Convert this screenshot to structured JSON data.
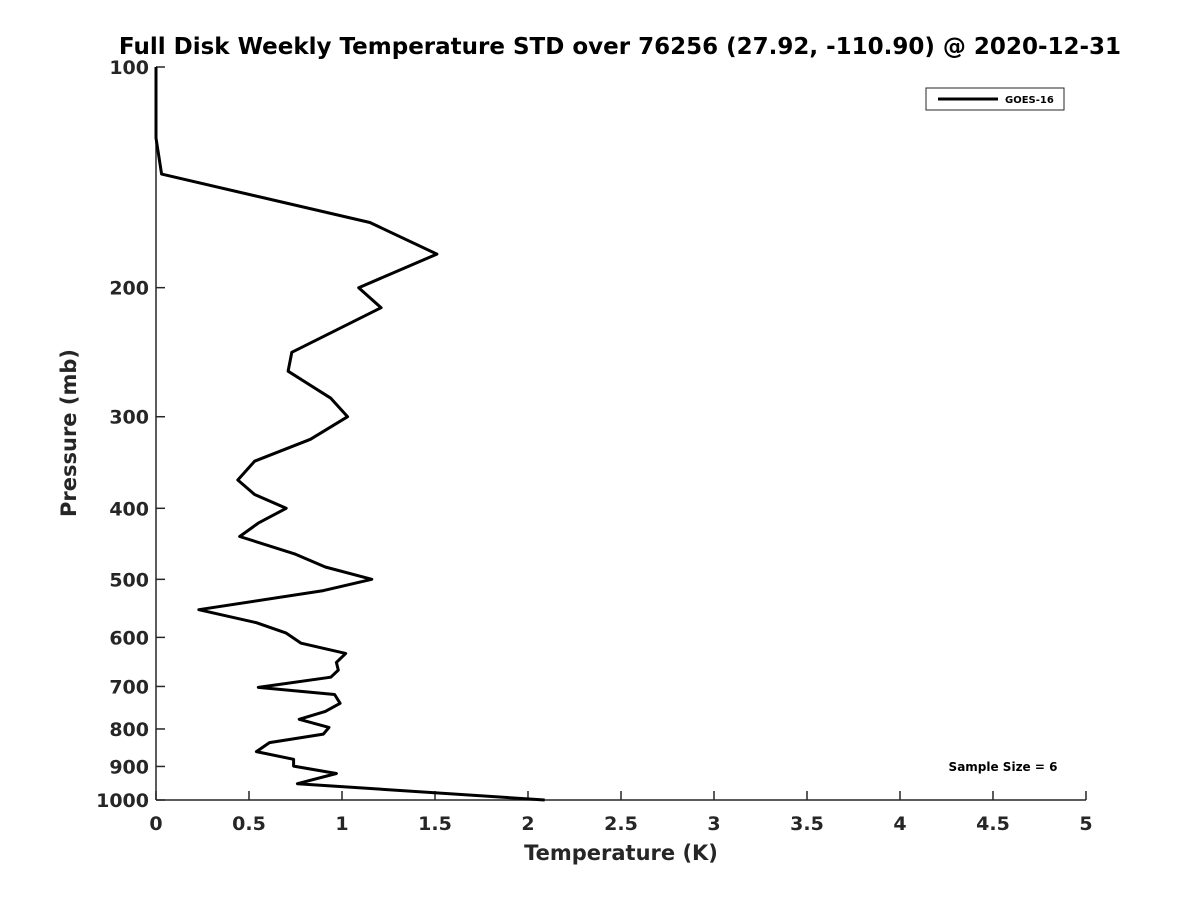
{
  "chart_data": {
    "type": "line",
    "title": "Full Disk Weekly Temperature STD over 76256 (27.92, -110.90) @ 2020-12-31",
    "xlabel": "Temperature (K)",
    "ylabel": "Pressure (mb)",
    "xlim": [
      0,
      5
    ],
    "ylim": [
      100,
      1000
    ],
    "y_scale": "log",
    "y_reversed": true,
    "x_ticks": [
      "0",
      "0.5",
      "1",
      "1.5",
      "2",
      "2.5",
      "3",
      "3.5",
      "4",
      "4.5",
      "5"
    ],
    "y_ticks": [
      "100",
      "200",
      "300",
      "400",
      "500",
      "600",
      "700",
      "800",
      "900",
      "1000"
    ],
    "grid": false,
    "legend_position": "top-right",
    "annotation": "Sample Size = 6",
    "series": [
      {
        "name": "GOES-16",
        "color": "#000000",
        "x": [
          0,
          0,
          0.03,
          1.15,
          1.51,
          1.09,
          1.21,
          0.73,
          0.71,
          0.94,
          1.03,
          0.83,
          0.53,
          0.44,
          0.53,
          0.7,
          0.55,
          0.45,
          0.75,
          0.91,
          1.16,
          0.9,
          0.23,
          0.54,
          0.7,
          0.78,
          1.02,
          0.97,
          0.98,
          0.94,
          0.55,
          0.96,
          0.99,
          0.91,
          0.77,
          0.93,
          0.9,
          0.61,
          0.54,
          0.74,
          0.74,
          0.97,
          0.76,
          2.09
        ],
        "y": [
          100,
          125,
          140,
          163,
          180,
          200,
          213,
          245,
          260,
          283,
          300,
          322,
          345,
          366,
          383,
          400,
          419,
          437,
          462,
          481,
          500,
          518,
          550,
          573,
          592,
          611,
          631,
          649,
          665,
          680,
          702,
          718,
          738,
          757,
          776,
          796,
          813,
          835,
          859,
          880,
          899,
          920,
          950,
          1000
        ]
      }
    ]
  }
}
